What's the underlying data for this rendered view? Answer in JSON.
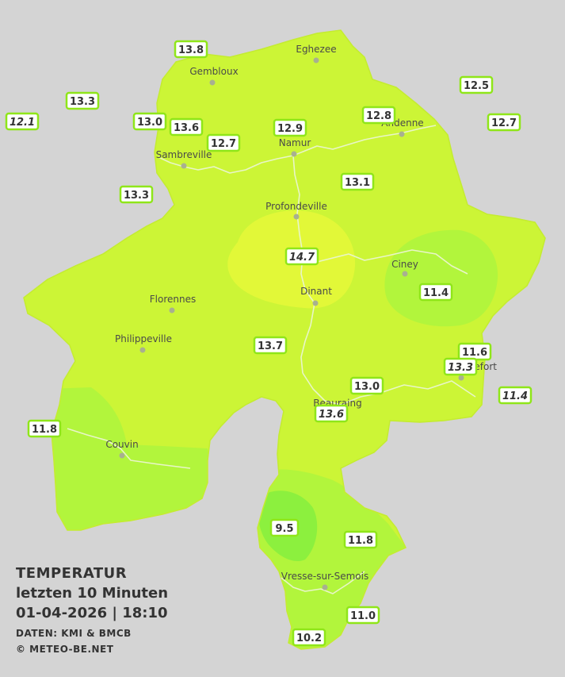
{
  "colors": {
    "background": "#d4d4d4",
    "province": "#ccf536",
    "warm_zone": "#e2f838",
    "cool_zone": "#b2f53c",
    "cold_zone": "#8cf03e",
    "badge_border": "#8fe619"
  },
  "cities": [
    {
      "name": "Eghezee"
    },
    {
      "name": "Gembloux"
    },
    {
      "name": "Andenne"
    },
    {
      "name": "Namur"
    },
    {
      "name": "Sambreville"
    },
    {
      "name": "Profondeville"
    },
    {
      "name": "Ciney"
    },
    {
      "name": "Florennes"
    },
    {
      "name": "Dinant"
    },
    {
      "name": "Philippeville"
    },
    {
      "name": "Rochefort"
    },
    {
      "name": "Beauraing"
    },
    {
      "name": "Couvin"
    },
    {
      "name": "Vresse-sur-Semois"
    }
  ],
  "readings": [
    {
      "value": "13.8",
      "italic": false
    },
    {
      "value": "13.3",
      "italic": false
    },
    {
      "value": "12.1",
      "italic": true
    },
    {
      "value": "13.0",
      "italic": false
    },
    {
      "value": "13.6",
      "italic": false
    },
    {
      "value": "12.7",
      "italic": false
    },
    {
      "value": "12.9",
      "italic": false
    },
    {
      "value": "12.8",
      "italic": false
    },
    {
      "value": "12.5",
      "italic": false
    },
    {
      "value": "12.7",
      "italic": false
    },
    {
      "value": "13.1",
      "italic": false
    },
    {
      "value": "13.3",
      "italic": false
    },
    {
      "value": "14.7",
      "italic": true
    },
    {
      "value": "11.4",
      "italic": false
    },
    {
      "value": "13.7",
      "italic": false
    },
    {
      "value": "11.6",
      "italic": false
    },
    {
      "value": "13.3",
      "italic": true
    },
    {
      "value": "11.4",
      "italic": true
    },
    {
      "value": "13.0",
      "italic": false
    },
    {
      "value": "13.6",
      "italic": true
    },
    {
      "value": "11.8",
      "italic": false
    },
    {
      "value": "9.5",
      "italic": false
    },
    {
      "value": "11.8",
      "italic": false
    },
    {
      "value": "11.0",
      "italic": false
    },
    {
      "value": "10.2",
      "italic": false
    }
  ],
  "caption": {
    "title": "TEMPERATUR",
    "subtitle": "letzten 10 Minuten",
    "datetime": "01-04-2026  |  18:10",
    "source": "DATEN: KMI & BMCB",
    "copyright": "© METEO-BE.NET"
  }
}
